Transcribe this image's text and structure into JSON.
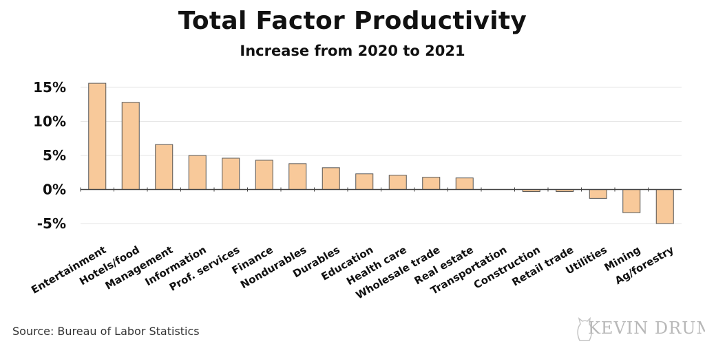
{
  "chart_data": {
    "type": "bar",
    "title": "Total Factor Productivity",
    "subtitle": "Increase from 2020 to 2021",
    "xlabel": "",
    "ylabel": "",
    "categories": [
      "Entertainment",
      "Hotels/food",
      "Management",
      "Information",
      "Prof. services",
      "Finance",
      "Nondurables",
      "Durables",
      "Education",
      "Health care",
      "Wholesale trade",
      "Real estate",
      "Transportation",
      "Construction",
      "Retail trade",
      "Utilities",
      "Mining",
      "Ag/forestry"
    ],
    "values": [
      15.6,
      12.8,
      6.6,
      5.0,
      4.6,
      4.3,
      3.8,
      3.2,
      2.3,
      2.1,
      1.8,
      1.7,
      0.0,
      -0.3,
      -0.3,
      -1.3,
      -3.4,
      -5.0
    ],
    "ylim": [
      -6.5,
      16.5
    ],
    "yticks": [
      -5,
      0,
      5,
      10,
      15
    ],
    "ytick_labels": [
      "-5%",
      "0%",
      "5%",
      "10%",
      "15%"
    ],
    "grid": true,
    "bar_color": "#f8c99a",
    "bar_edge_color": "#555555"
  },
  "footer": {
    "source": "Source: Bureau of Labor Statistics",
    "brand": "KEVIN DRUM"
  }
}
